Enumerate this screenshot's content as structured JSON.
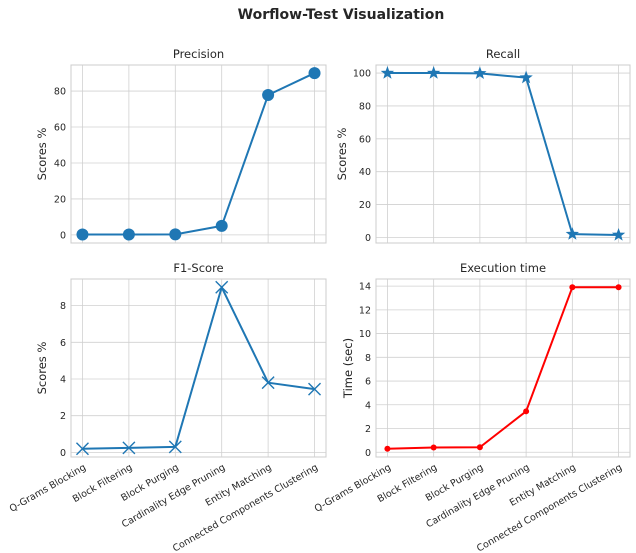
{
  "title": "Worflow-Test Visualization",
  "chart_data": [
    {
      "type": "line",
      "title": "Precision",
      "xlabel": "",
      "ylabel": "Scores %",
      "categories": [
        "Q-Grams Blocking",
        "Block Filtering",
        "Block Purging",
        "Cardinality Edge Pruning",
        "Entity Matching",
        "Connected Components Clustering"
      ],
      "values": [
        0.2,
        0.2,
        0.3,
        5.0,
        77.8,
        90.0
      ],
      "ylim": [
        -4.5,
        94.5
      ],
      "yticks": [
        0,
        20,
        40,
        60,
        80
      ],
      "marker": "circle",
      "color": "#1f77b4",
      "show_xticklabels": false,
      "grid": true
    },
    {
      "type": "line",
      "title": "Recall",
      "xlabel": "",
      "ylabel": "Scores %",
      "categories": [
        "Q-Grams Blocking",
        "Block Filtering",
        "Block Purging",
        "Cardinality Edge Pruning",
        "Entity Matching",
        "Connected Components Clustering"
      ],
      "values": [
        100.0,
        100.0,
        99.8,
        97.2,
        2.0,
        1.5
      ],
      "ylim": [
        -3.4,
        104.9
      ],
      "yticks": [
        0,
        20,
        40,
        60,
        80,
        100
      ],
      "marker": "star",
      "color": "#1f77b4",
      "show_xticklabels": false,
      "grid": true
    },
    {
      "type": "line",
      "title": "F1-Score",
      "xlabel": "",
      "ylabel": "Scores %",
      "categories": [
        "Q-Grams Blocking",
        "Block Filtering",
        "Block Purging",
        "Cardinality Edge Pruning",
        "Entity Matching",
        "Connected Components Clustering"
      ],
      "values": [
        0.2,
        0.25,
        0.3,
        9.0,
        3.8,
        3.45
      ],
      "ylim": [
        -0.25,
        9.45
      ],
      "yticks": [
        0,
        2,
        4,
        6,
        8
      ],
      "marker": "x",
      "color": "#1f77b4",
      "show_xticklabels": true,
      "grid": true
    },
    {
      "type": "line",
      "title": "Execution time",
      "xlabel": "",
      "ylabel": "Time (sec)",
      "categories": [
        "Q-Grams Blocking",
        "Block Filtering",
        "Block Purging",
        "Cardinality Edge Pruning",
        "Entity Matching",
        "Connected Components Clustering"
      ],
      "values": [
        0.3,
        0.4,
        0.42,
        3.45,
        13.9,
        13.9
      ],
      "ylim": [
        -0.4,
        14.6
      ],
      "yticks": [
        0,
        2,
        4,
        6,
        8,
        10,
        12,
        14
      ],
      "marker": "dot",
      "color": "#ff0000",
      "show_xticklabels": true,
      "grid": true
    }
  ]
}
